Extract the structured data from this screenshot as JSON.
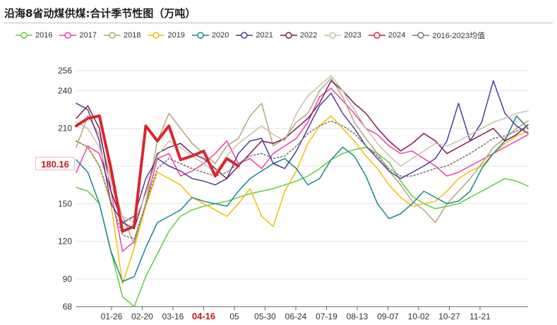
{
  "chart_data": {
    "type": "line",
    "title": "沿海8省动煤供煤:合计季节性图（万吨）",
    "unit": "万吨",
    "y_ticks": [
      68,
      90,
      120,
      150,
      180,
      210,
      240,
      256
    ],
    "ylim": [
      68,
      256
    ],
    "x_ticks": [
      "01-26",
      "02-20",
      "03-16",
      "04-16",
      "05",
      "05-30",
      "06-24",
      "07-19",
      "08-13",
      "09-07",
      "10-02",
      "10-27",
      "11-21"
    ],
    "highlight_x_tick": "04-16",
    "current_value_label": "180.16",
    "series": [
      {
        "name": "2016",
        "color": "#5fcd3d",
        "values": [
          163,
          160,
          150,
          112,
          76,
          68,
          92,
          110,
          128,
          140,
          145,
          148,
          150,
          152,
          155,
          158,
          160,
          162,
          165,
          168,
          172,
          178,
          185,
          190,
          193,
          195,
          190,
          183,
          168,
          156,
          150,
          146,
          148,
          150,
          155,
          160,
          165,
          170,
          168,
          164
        ]
      },
      {
        "name": "2017",
        "color": "#ee3ea6",
        "values": [
          175,
          196,
          190,
          160,
          112,
          120,
          150,
          186,
          190,
          172,
          176,
          182,
          190,
          200,
          182,
          186,
          178,
          190,
          196,
          202,
          215,
          235,
          242,
          232,
          222,
          210,
          205,
          196,
          190,
          192,
          186,
          180,
          172,
          175,
          180,
          185,
          190,
          195,
          200,
          205
        ]
      },
      {
        "name": "2018",
        "color": "#b5a57a",
        "values": [
          195,
          220,
          205,
          170,
          140,
          118,
          150,
          200,
          222,
          210,
          198,
          190,
          182,
          196,
          202,
          220,
          230,
          196,
          202,
          215,
          222,
          240,
          250,
          235,
          215,
          202,
          190,
          176,
          165,
          152,
          145,
          135,
          150,
          160,
          170,
          182,
          195,
          202,
          210,
          216
        ]
      },
      {
        "name": "2019",
        "color": "#f2bf00",
        "values": [
          200,
          195,
          180,
          150,
          86,
          115,
          148,
          175,
          170,
          165,
          155,
          150,
          145,
          140,
          150,
          162,
          140,
          132,
          160,
          176,
          198,
          212,
          220,
          210,
          200,
          188,
          178,
          165,
          155,
          148,
          150,
          152,
          160,
          170,
          176,
          180,
          190,
          198,
          204,
          208
        ]
      },
      {
        "name": "2020",
        "color": "#14898b",
        "values": [
          185,
          175,
          150,
          112,
          88,
          92,
          115,
          135,
          140,
          145,
          155,
          152,
          150,
          148,
          160,
          170,
          176,
          182,
          186,
          178,
          165,
          170,
          185,
          195,
          188,
          172,
          150,
          138,
          142,
          150,
          160,
          155,
          150,
          152,
          160,
          178,
          190,
          200,
          220,
          210
        ]
      },
      {
        "name": "2021",
        "color": "#4b3c9a",
        "values": [
          230,
          225,
          200,
          150,
          135,
          140,
          170,
          186,
          180,
          176,
          170,
          168,
          165,
          170,
          190,
          200,
          202,
          182,
          178,
          192,
          210,
          228,
          238,
          222,
          210,
          196,
          186,
          176,
          170,
          175,
          180,
          186,
          200,
          230,
          200,
          215,
          248,
          222,
          212,
          206
        ]
      },
      {
        "name": "2022",
        "color": "#7a1a57",
        "values": [
          218,
          228,
          210,
          160,
          135,
          130,
          160,
          190,
          195,
          198,
          190,
          186,
          178,
          170,
          180,
          190,
          200,
          198,
          202,
          210,
          218,
          230,
          248,
          240,
          230,
          222,
          210,
          200,
          192,
          198,
          206,
          200,
          190,
          195,
          200,
          205,
          210,
          200,
          205,
          213
        ]
      },
      {
        "name": "2023",
        "color": "#c8c1aa",
        "values": [
          215,
          210,
          195,
          165,
          140,
          135,
          158,
          188,
          200,
          195,
          188,
          182,
          175,
          188,
          198,
          205,
          212,
          205,
          200,
          222,
          236,
          244,
          252,
          240,
          225,
          210,
          198,
          188,
          180,
          186,
          192,
          198,
          196,
          200,
          205,
          210,
          215,
          218,
          222,
          224
        ]
      },
      {
        "name": "2024",
        "color": "#d9262d",
        "values": [
          212,
          218,
          220,
          178,
          128,
          132,
          212,
          200,
          212,
          185,
          188,
          192,
          172,
          186,
          180
        ]
      },
      {
        "name": "2016-2023均值",
        "color": "#7f7777",
        "dashed": true,
        "values": [
          200,
          195,
          180,
          152,
          125,
          122,
          150,
          178,
          186,
          182,
          178,
          175,
          172,
          175,
          182,
          188,
          190,
          186,
          188,
          196,
          206,
          212,
          216,
          212,
          206,
          196,
          188,
          178,
          172,
          172,
          175,
          178,
          180,
          185,
          190,
          196,
          202,
          204,
          208,
          210
        ]
      }
    ]
  }
}
